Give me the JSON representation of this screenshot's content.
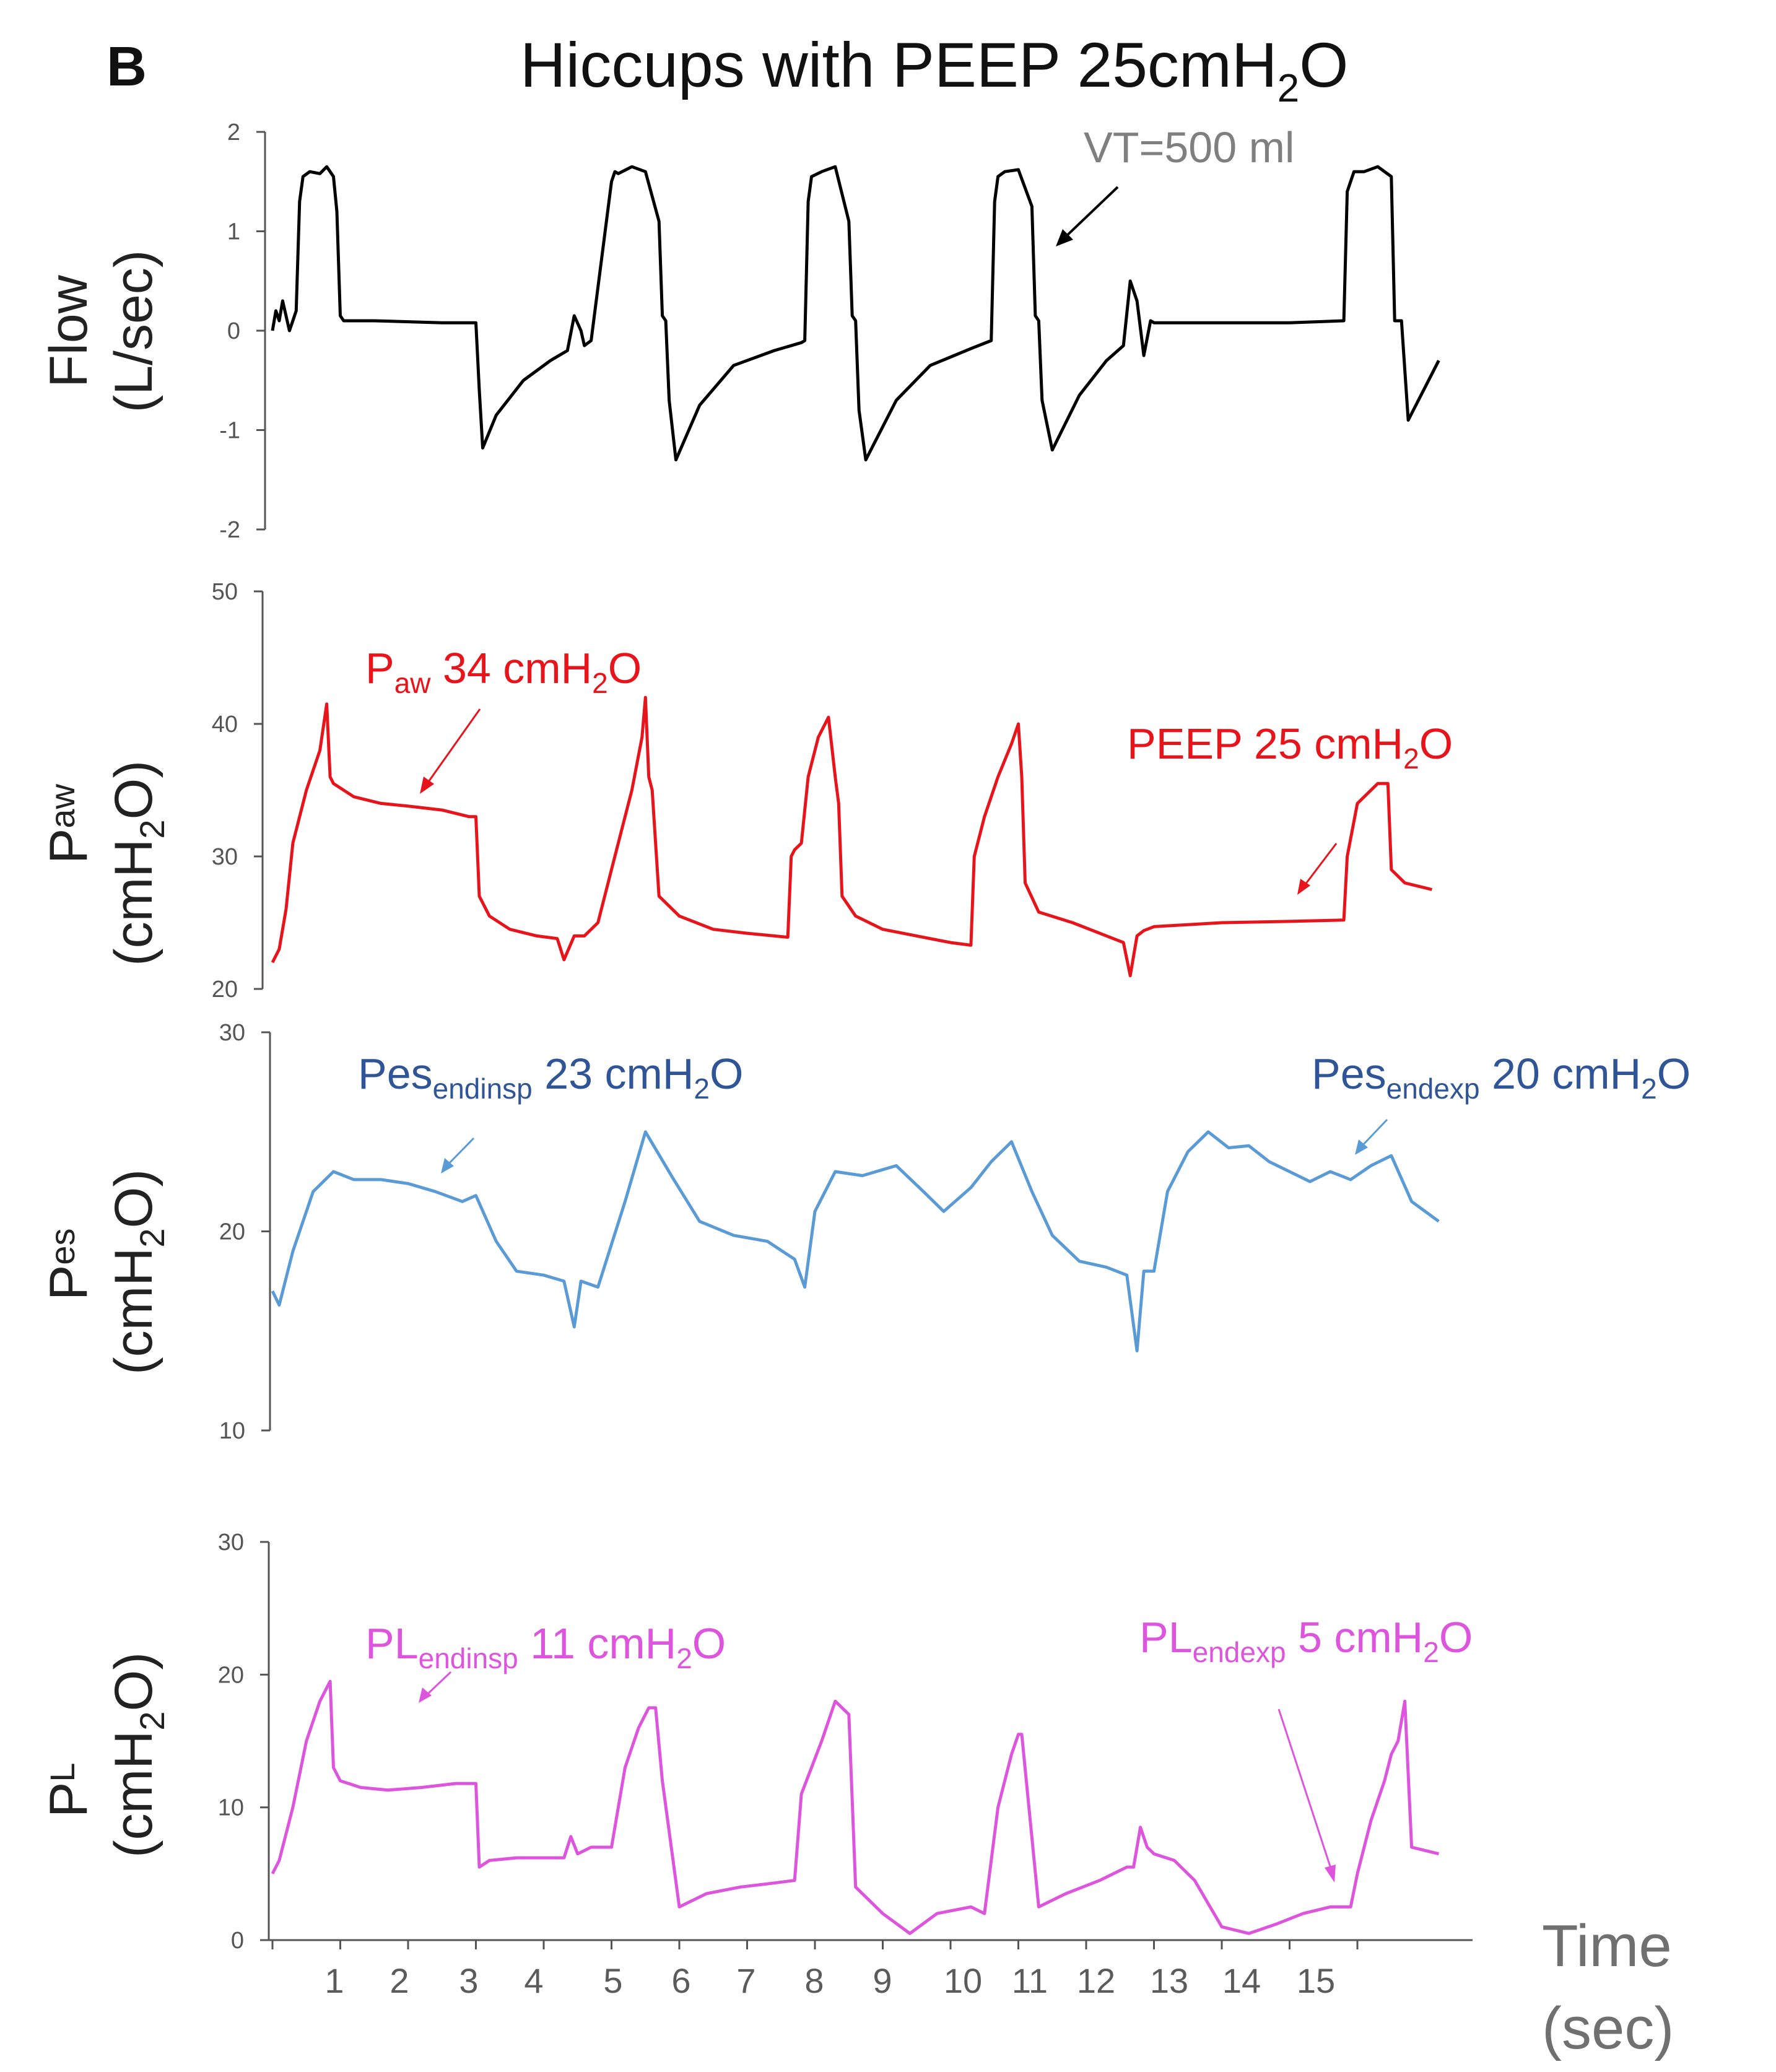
{
  "panel_letter": "B",
  "title": {
    "main": "Hiccups with PEEP 25cmH",
    "sub": "2",
    "tail": "O"
  },
  "x_axis": {
    "ticks": [
      "1",
      "2",
      "3",
      "4",
      "5",
      "6",
      "7",
      "8",
      "9",
      "10",
      "11",
      "12",
      "13",
      "14",
      "15"
    ],
    "label_line1": "Time",
    "label_line2": "(sec)"
  },
  "colors": {
    "flow": "#000000",
    "paw": "#e8141b",
    "pes": "#5b9bd5",
    "pl": "#dd55dd",
    "pes_label": "#2f5597",
    "vt_label": "#7f7f7f"
  },
  "chart_data": [
    {
      "type": "line",
      "name": "flow",
      "ylabel_line1": "Flow",
      "ylabel_line2": "(L/sec)",
      "ylim": [
        -2,
        2
      ],
      "yticks": [
        "2",
        "1",
        "0",
        "-1",
        "-2"
      ],
      "annotations": [
        {
          "text": "VT=500 ml"
        }
      ],
      "x": [
        0,
        0.05,
        0.1,
        0.15,
        0.2,
        0.25,
        0.3,
        0.35,
        0.4,
        0.45,
        0.55,
        0.7,
        0.8,
        0.85,
        0.9,
        0.95,
        1.0,
        1.05,
        1.5,
        2.5,
        3.0,
        3.05,
        3.1,
        3.3,
        3.7,
        4.1,
        4.35,
        4.45,
        4.55,
        4.6,
        4.7,
        5.0,
        5.05,
        5.1,
        5.3,
        5.5,
        5.7,
        5.75,
        5.8,
        5.85,
        5.95,
        6.3,
        6.8,
        7.4,
        7.8,
        7.85,
        7.9,
        7.95,
        8.1,
        8.3,
        8.5,
        8.55,
        8.6,
        8.65,
        8.75,
        9.2,
        9.7,
        10.3,
        10.6,
        10.65,
        10.7,
        10.8,
        11.0,
        11.2,
        11.25,
        11.3,
        11.35,
        11.5,
        11.9,
        12.3,
        12.55,
        12.65,
        12.75,
        12.85,
        12.95,
        13.0,
        13.1,
        13.3,
        14.0,
        15.0,
        15.8,
        15.85,
        15.95,
        16.1,
        16.3,
        16.5,
        16.55,
        16.65,
        16.75,
        17.2
      ],
      "y": [
        0.0,
        0.2,
        0.1,
        0.3,
        0.15,
        0.0,
        0.1,
        0.2,
        1.3,
        1.55,
        1.6,
        1.58,
        1.65,
        1.6,
        1.55,
        1.2,
        0.15,
        0.1,
        0.1,
        0.08,
        0.08,
        -0.6,
        -1.18,
        -0.85,
        -0.5,
        -0.3,
        -0.2,
        0.15,
        0.0,
        -0.15,
        -0.1,
        1.5,
        1.6,
        1.58,
        1.65,
        1.6,
        1.1,
        0.15,
        0.1,
        -0.7,
        -1.3,
        -0.75,
        -0.35,
        -0.2,
        -0.12,
        -0.1,
        1.3,
        1.55,
        1.6,
        1.65,
        1.1,
        0.15,
        0.1,
        -0.8,
        -1.3,
        -0.7,
        -0.35,
        -0.18,
        -0.1,
        1.3,
        1.55,
        1.6,
        1.62,
        1.25,
        0.15,
        0.1,
        -0.7,
        -1.2,
        -0.65,
        -0.3,
        -0.15,
        0.5,
        0.3,
        -0.25,
        0.1,
        0.08,
        0.08,
        0.08,
        0.08,
        0.08,
        0.1,
        1.4,
        1.6,
        1.6,
        1.65,
        1.55,
        0.1,
        0.1,
        -0.9,
        -0.3
      ]
    },
    {
      "type": "line",
      "name": "paw",
      "ylabel_main": "P",
      "ylabel_sub": "aw",
      "ylabel_line2": "(cmH",
      "ylabel_line2_sub": "2",
      "ylabel_line2_tail": "O)",
      "ylim": [
        20,
        50
      ],
      "yticks": [
        "50",
        "40",
        "30",
        "20"
      ],
      "annotations": [
        {
          "main": "P",
          "sub": "aw",
          "tail": " 34 cmH",
          "sub2": "2",
          "tail2": "O"
        },
        {
          "main": "PEEP 25 cmH",
          "sub": "2",
          "tail": "O"
        }
      ],
      "x": [
        0,
        0.1,
        0.2,
        0.3,
        0.5,
        0.7,
        0.8,
        0.85,
        0.9,
        1.2,
        1.6,
        2.0,
        2.5,
        2.9,
        3.0,
        3.05,
        3.2,
        3.5,
        3.9,
        4.2,
        4.3,
        4.45,
        4.6,
        4.8,
        5.1,
        5.3,
        5.45,
        5.5,
        5.55,
        5.6,
        5.7,
        6.0,
        6.5,
        7.0,
        7.6,
        7.65,
        7.7,
        7.8,
        7.9,
        8.05,
        8.2,
        8.3,
        8.35,
        8.4,
        8.6,
        9.0,
        9.5,
        10.0,
        10.3,
        10.35,
        10.5,
        10.7,
        10.9,
        11.0,
        11.05,
        11.1,
        11.3,
        11.8,
        12.3,
        12.55,
        12.65,
        12.75,
        12.85,
        13.0,
        14.0,
        15.0,
        15.8,
        15.85,
        16.0,
        16.3,
        16.45,
        16.5,
        16.7,
        17.1
      ],
      "y": [
        22,
        23,
        26,
        31,
        35,
        38,
        41.5,
        36,
        35.5,
        34.5,
        34,
        33.8,
        33.5,
        33,
        33,
        27,
        25.5,
        24.5,
        24,
        23.8,
        22.2,
        24,
        24,
        25,
        31,
        35,
        39,
        42,
        36,
        35,
        27,
        25.5,
        24.5,
        24.2,
        23.9,
        30,
        30.5,
        31,
        36,
        39,
        40.5,
        36,
        34,
        27,
        25.5,
        24.5,
        24,
        23.5,
        23.3,
        30,
        33,
        36,
        38.5,
        40,
        36,
        28,
        25.8,
        25,
        24,
        23.5,
        21,
        24,
        24.4,
        24.7,
        25.0,
        25.1,
        25.2,
        30,
        34,
        35.5,
        35.5,
        29,
        28,
        27.5
      ]
    },
    {
      "type": "line",
      "name": "pes",
      "ylabel_main": "P",
      "ylabel_sub": "es",
      "ylabel_line2": "(cmH",
      "ylabel_line2_sub": "2",
      "ylabel_line2_tail": "O)",
      "ylim": [
        10,
        30
      ],
      "yticks": [
        "30",
        "20",
        "10"
      ],
      "annotations": [
        {
          "main": "Pes",
          "sub": "endinsp",
          "tail": " 23 cmH",
          "sub2": "2",
          "tail2": "O"
        },
        {
          "main": "Pes",
          "sub": "endexp",
          "tail": " 20 cmH",
          "sub2": "2",
          "tail2": "O"
        }
      ],
      "x": [
        0,
        0.1,
        0.3,
        0.6,
        0.9,
        1.2,
        1.6,
        2.0,
        2.4,
        2.8,
        3.0,
        3.3,
        3.6,
        4.0,
        4.3,
        4.45,
        4.55,
        4.8,
        5.2,
        5.5,
        5.9,
        6.3,
        6.8,
        7.3,
        7.7,
        7.85,
        8.0,
        8.3,
        8.7,
        9.2,
        9.6,
        9.9,
        10.3,
        10.6,
        10.9,
        11.2,
        11.5,
        11.9,
        12.3,
        12.6,
        12.75,
        12.85,
        13.0,
        13.2,
        13.5,
        13.8,
        14.1,
        14.4,
        14.7,
        15.0,
        15.3,
        15.6,
        15.9,
        16.2,
        16.5,
        16.8,
        17.0,
        17.2
      ],
      "y": [
        17,
        16.3,
        19,
        22,
        23,
        22.6,
        22.6,
        22.4,
        22,
        21.5,
        21.8,
        19.5,
        18,
        17.8,
        17.5,
        15.2,
        17.5,
        17.2,
        21.5,
        25,
        22.7,
        20.5,
        19.8,
        19.5,
        18.6,
        17.2,
        21,
        23,
        22.8,
        23.3,
        22,
        21,
        22.2,
        23.5,
        24.5,
        22,
        19.8,
        18.5,
        18.2,
        17.8,
        14,
        18,
        18,
        22,
        24,
        25,
        24.2,
        24.3,
        23.5,
        23,
        22.5,
        23,
        22.6,
        23.3,
        23.8,
        21.5,
        21,
        20.5
      ]
    },
    {
      "type": "line",
      "name": "pl",
      "ylabel_main": "P",
      "ylabel_sub": "L",
      "ylabel_line2": "(cmH",
      "ylabel_line2_sub": "2",
      "ylabel_line2_tail": "O)",
      "ylim": [
        0,
        30
      ],
      "yticks": [
        "30",
        "20",
        "10",
        "0"
      ],
      "annotations": [
        {
          "main": "PL",
          "sub": "endinsp",
          "tail": " 11 cmH",
          "sub2": "2",
          "tail2": "O"
        },
        {
          "main": "PL",
          "sub": "endexp",
          "tail": " 5 cmH",
          "sub2": "2",
          "tail2": "O"
        }
      ],
      "x": [
        0,
        0.1,
        0.3,
        0.5,
        0.7,
        0.85,
        0.9,
        1.0,
        1.3,
        1.7,
        2.2,
        2.7,
        3.0,
        3.05,
        3.2,
        3.6,
        4.0,
        4.3,
        4.4,
        4.5,
        4.7,
        5.0,
        5.2,
        5.4,
        5.55,
        5.65,
        5.75,
        6.0,
        6.4,
        6.9,
        7.4,
        7.7,
        7.8,
        8.1,
        8.3,
        8.5,
        8.6,
        9.0,
        9.4,
        9.8,
        10.3,
        10.5,
        10.7,
        10.9,
        11.0,
        11.05,
        11.3,
        11.7,
        12.2,
        12.6,
        12.7,
        12.8,
        12.9,
        13.0,
        13.3,
        13.6,
        14.0,
        14.4,
        14.8,
        15.2,
        15.6,
        15.9,
        16.0,
        16.2,
        16.4,
        16.5,
        16.6,
        16.7,
        16.8,
        17.2
      ],
      "y": [
        5,
        6,
        10,
        15,
        18,
        19.5,
        13,
        12,
        11.5,
        11.3,
        11.5,
        11.8,
        11.8,
        5.5,
        6,
        6.2,
        6.2,
        6.2,
        7.8,
        6.5,
        7,
        7,
        13,
        16,
        17.5,
        17.5,
        12,
        2.5,
        3.5,
        4,
        4.3,
        4.5,
        11,
        15,
        18,
        17,
        4,
        2,
        0.5,
        2,
        2.5,
        2,
        10,
        14,
        15.5,
        15.5,
        2.5,
        3.5,
        4.5,
        5.5,
        5.5,
        8.5,
        7,
        6.5,
        6,
        4.5,
        1,
        0.5,
        1.2,
        2,
        2.5,
        2.5,
        5,
        9,
        12,
        14,
        15,
        18,
        7,
        6.5
      ]
    }
  ]
}
